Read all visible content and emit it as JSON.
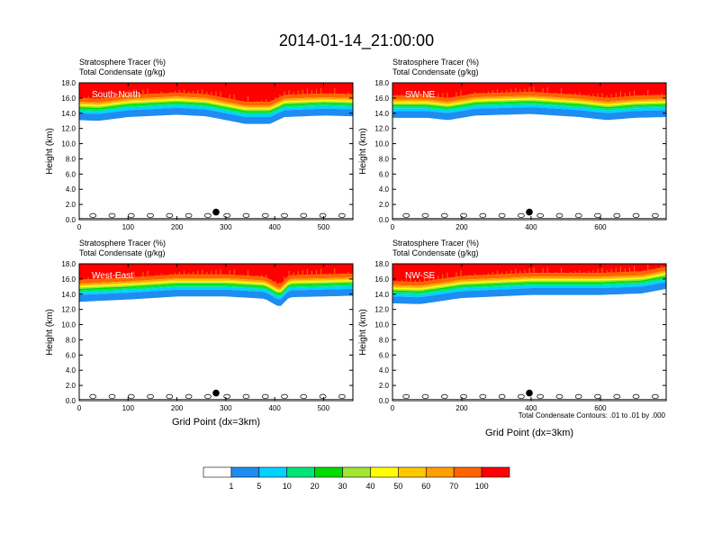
{
  "title": "2014-01-14_21:00:00",
  "common": {
    "var1": "Stratosphere Tracer   (%)",
    "var2": "Total Condensate   (g/kg)",
    "ylabel": "Height (km)",
    "xlabel": "Grid Point (dx=3km)",
    "contour_note": "Total Condensate Contours: .01 to .01 by .000"
  },
  "colorbar": {
    "colors": [
      "#ffffff",
      "#1e8cf0",
      "#00d2ff",
      "#00e678",
      "#00dc00",
      "#a0e632",
      "#ffff00",
      "#ffc800",
      "#ffa000",
      "#ff6400",
      "#ff0000"
    ],
    "labels": [
      "1",
      "5",
      "10",
      "20",
      "30",
      "40",
      "50",
      "60",
      "70",
      "100"
    ]
  },
  "chart_data": [
    {
      "type": "heatmap",
      "label": "South-North",
      "xlim": [
        0,
        560
      ],
      "ylim": [
        0,
        18
      ],
      "xticks": [
        "0",
        "100",
        "200",
        "300",
        "400",
        "500"
      ],
      "yticks": [
        "0.0",
        "2.0",
        "4.0",
        "6.0",
        "8.0",
        "10.0",
        "12.0",
        "14.0",
        "16.0",
        "18.0"
      ],
      "profile": [
        [
          0,
          14.0
        ],
        [
          40,
          13.9
        ],
        [
          100,
          14.4
        ],
        [
          200,
          14.7
        ],
        [
          260,
          14.5
        ],
        [
          340,
          13.5
        ],
        [
          390,
          13.5
        ],
        [
          420,
          14.4
        ],
        [
          500,
          14.6
        ],
        [
          560,
          14.5
        ]
      ],
      "marker_x": 280
    },
    {
      "type": "heatmap",
      "label": "SW-NE",
      "xlim": [
        0,
        790
      ],
      "ylim": [
        0,
        18
      ],
      "xticks": [
        "0",
        "200",
        "400",
        "600"
      ],
      "yticks": [
        "0.0",
        "2.0",
        "4.0",
        "6.0",
        "8.0",
        "10.0",
        "12.0",
        "14.0",
        "16.0",
        "18.0"
      ],
      "profile": [
        [
          0,
          14.3
        ],
        [
          100,
          14.3
        ],
        [
          160,
          14.0
        ],
        [
          240,
          14.6
        ],
        [
          400,
          14.8
        ],
        [
          540,
          14.4
        ],
        [
          620,
          14.0
        ],
        [
          700,
          14.3
        ],
        [
          790,
          14.4
        ]
      ],
      "marker_x": 395
    },
    {
      "type": "heatmap",
      "label": "West-East",
      "xlim": [
        0,
        560
      ],
      "ylim": [
        0,
        18
      ],
      "xticks": [
        "0",
        "100",
        "200",
        "300",
        "400",
        "500"
      ],
      "yticks": [
        "0.0",
        "2.0",
        "4.0",
        "6.0",
        "8.0",
        "10.0",
        "12.0",
        "14.0",
        "16.0",
        "18.0"
      ],
      "profile": [
        [
          0,
          13.9
        ],
        [
          100,
          14.2
        ],
        [
          200,
          14.6
        ],
        [
          300,
          14.6
        ],
        [
          380,
          14.3
        ],
        [
          410,
          13.2
        ],
        [
          430,
          14.5
        ],
        [
          560,
          14.7
        ]
      ],
      "marker_x": 280
    },
    {
      "type": "heatmap",
      "label": "NW-SE",
      "xlim": [
        0,
        790
      ],
      "ylim": [
        0,
        18
      ],
      "xticks": [
        "0",
        "200",
        "400",
        "600"
      ],
      "yticks": [
        "0.0",
        "2.0",
        "4.0",
        "6.0",
        "8.0",
        "10.0",
        "12.0",
        "14.0",
        "16.0",
        "18.0"
      ],
      "profile": [
        [
          0,
          13.7
        ],
        [
          80,
          13.6
        ],
        [
          200,
          14.4
        ],
        [
          400,
          14.8
        ],
        [
          600,
          14.8
        ],
        [
          720,
          15.0
        ],
        [
          790,
          15.6
        ]
      ],
      "marker_x": 395
    }
  ]
}
